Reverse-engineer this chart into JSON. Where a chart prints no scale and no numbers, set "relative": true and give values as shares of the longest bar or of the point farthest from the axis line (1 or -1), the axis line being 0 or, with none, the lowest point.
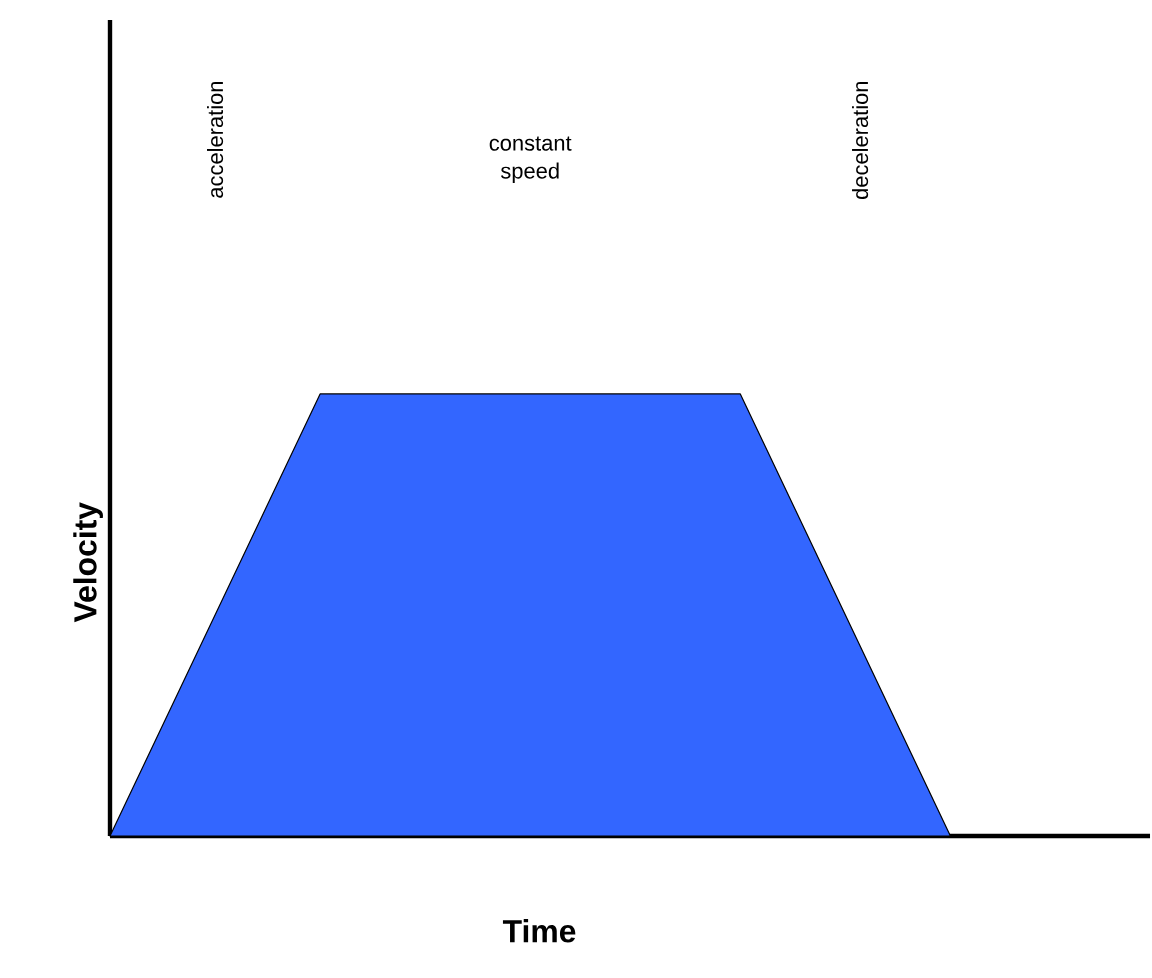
{
  "chart_data": {
    "type": "area",
    "relative": true,
    "xlabel": "Time",
    "ylabel": "Velocity",
    "categories": [
      null,
      null,
      null,
      null,
      null
    ],
    "values": [
      0,
      1,
      1,
      1,
      0
    ],
    "color": "#3366ff",
    "annotations": [
      "acceleration",
      "constant speed",
      "deceleration"
    ]
  }
}
